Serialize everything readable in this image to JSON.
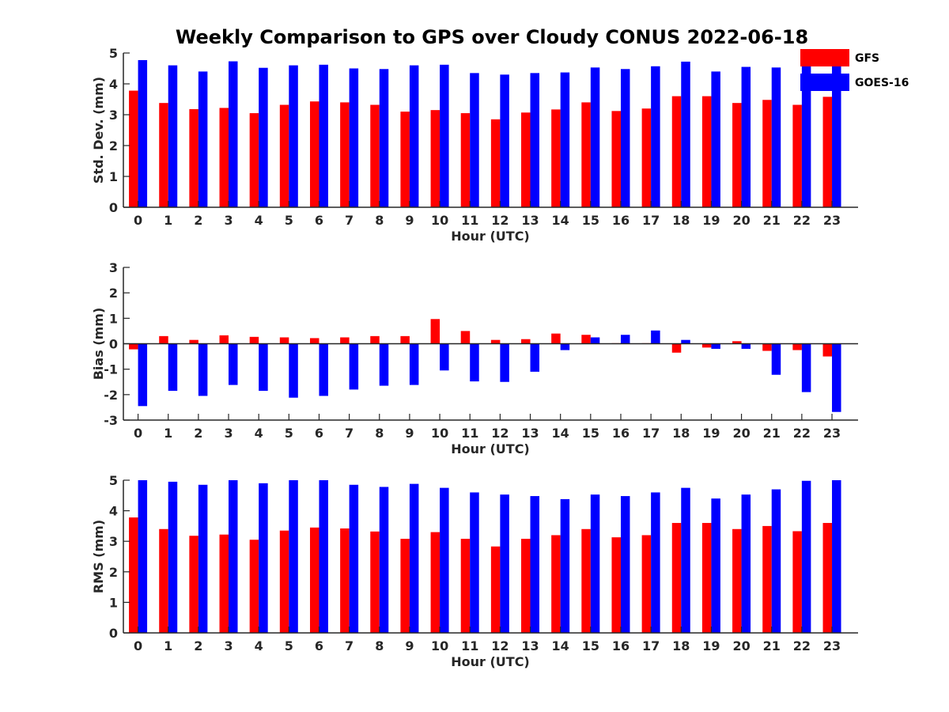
{
  "title": "Weekly Comparison to GPS over Cloudy CONUS 2022-06-18",
  "legend": {
    "items": [
      {
        "label": "GFS",
        "color": "#ff0000"
      },
      {
        "label": "GOES-16",
        "color": "#0000ff"
      }
    ]
  },
  "chart_data": [
    {
      "type": "bar",
      "ylabel": "Std. Dev. (mm)",
      "xlabel": "Hour (UTC)",
      "ylim": [
        0,
        5
      ],
      "yticks": [
        0,
        1,
        2,
        3,
        4,
        5
      ],
      "categories": [
        "0",
        "1",
        "2",
        "3",
        "4",
        "5",
        "6",
        "7",
        "8",
        "9",
        "10",
        "11",
        "12",
        "13",
        "14",
        "15",
        "16",
        "17",
        "18",
        "19",
        "20",
        "21",
        "22",
        "23"
      ],
      "series": [
        {
          "name": "GFS",
          "color": "#ff0000",
          "values": [
            3.78,
            3.38,
            3.18,
            3.22,
            3.05,
            3.32,
            3.43,
            3.4,
            3.32,
            3.1,
            3.15,
            3.05,
            2.85,
            3.07,
            3.17,
            3.4,
            3.12,
            3.2,
            3.6,
            3.6,
            3.38,
            3.48,
            3.32,
            3.58
          ]
        },
        {
          "name": "GOES-16",
          "color": "#0000ff",
          "values": [
            4.77,
            4.6,
            4.4,
            4.73,
            4.52,
            4.6,
            4.62,
            4.5,
            4.48,
            4.6,
            4.62,
            4.35,
            4.3,
            4.35,
            4.37,
            4.53,
            4.48,
            4.57,
            4.72,
            4.4,
            4.55,
            4.53,
            4.58,
            4.6
          ]
        }
      ]
    },
    {
      "type": "bar",
      "ylabel": "Bias (mm)",
      "xlabel": "Hour (UTC)",
      "ylim": [
        -3,
        3
      ],
      "yticks": [
        -3,
        -2,
        -1,
        0,
        1,
        2,
        3
      ],
      "zero_line": true,
      "categories": [
        "0",
        "1",
        "2",
        "3",
        "4",
        "5",
        "6",
        "7",
        "8",
        "9",
        "10",
        "11",
        "12",
        "13",
        "14",
        "15",
        "16",
        "17",
        "18",
        "19",
        "20",
        "21",
        "22",
        "23"
      ],
      "series": [
        {
          "name": "GFS",
          "color": "#ff0000",
          "values": [
            -0.22,
            0.3,
            0.15,
            0.33,
            0.27,
            0.25,
            0.22,
            0.25,
            0.3,
            0.3,
            0.97,
            0.5,
            0.15,
            0.18,
            0.4,
            0.35,
            0.02,
            0.02,
            -0.35,
            -0.15,
            0.1,
            -0.28,
            -0.25,
            -0.5
          ]
        },
        {
          "name": "GOES-16",
          "color": "#0000ff",
          "values": [
            -2.45,
            -1.85,
            -2.05,
            -1.62,
            -1.85,
            -2.12,
            -2.05,
            -1.8,
            -1.65,
            -1.62,
            -1.05,
            -1.48,
            -1.5,
            -1.1,
            -0.25,
            0.25,
            0.35,
            0.52,
            0.15,
            -0.2,
            -0.2,
            -1.22,
            -1.9,
            -2.68
          ]
        }
      ]
    },
    {
      "type": "bar",
      "ylabel": "RMS (mm)",
      "xlabel": "Hour (UTC)",
      "ylim": [
        0,
        5
      ],
      "yticks": [
        0,
        1,
        2,
        3,
        4,
        5
      ],
      "categories": [
        "0",
        "1",
        "2",
        "3",
        "4",
        "5",
        "6",
        "7",
        "8",
        "9",
        "10",
        "11",
        "12",
        "13",
        "14",
        "15",
        "16",
        "17",
        "18",
        "19",
        "20",
        "21",
        "22",
        "23"
      ],
      "series": [
        {
          "name": "GFS",
          "color": "#ff0000",
          "values": [
            3.78,
            3.4,
            3.18,
            3.22,
            3.05,
            3.35,
            3.45,
            3.42,
            3.32,
            3.08,
            3.3,
            3.08,
            2.83,
            3.08,
            3.2,
            3.4,
            3.13,
            3.2,
            3.6,
            3.6,
            3.4,
            3.5,
            3.33,
            3.6
          ]
        },
        {
          "name": "GOES-16",
          "color": "#0000ff",
          "values": [
            5.0,
            4.95,
            4.85,
            5.0,
            4.9,
            5.0,
            5.0,
            4.85,
            4.78,
            4.88,
            4.75,
            4.6,
            4.53,
            4.48,
            4.38,
            4.53,
            4.48,
            4.6,
            4.75,
            4.4,
            4.53,
            4.7,
            4.98,
            5.0
          ]
        }
      ]
    }
  ]
}
